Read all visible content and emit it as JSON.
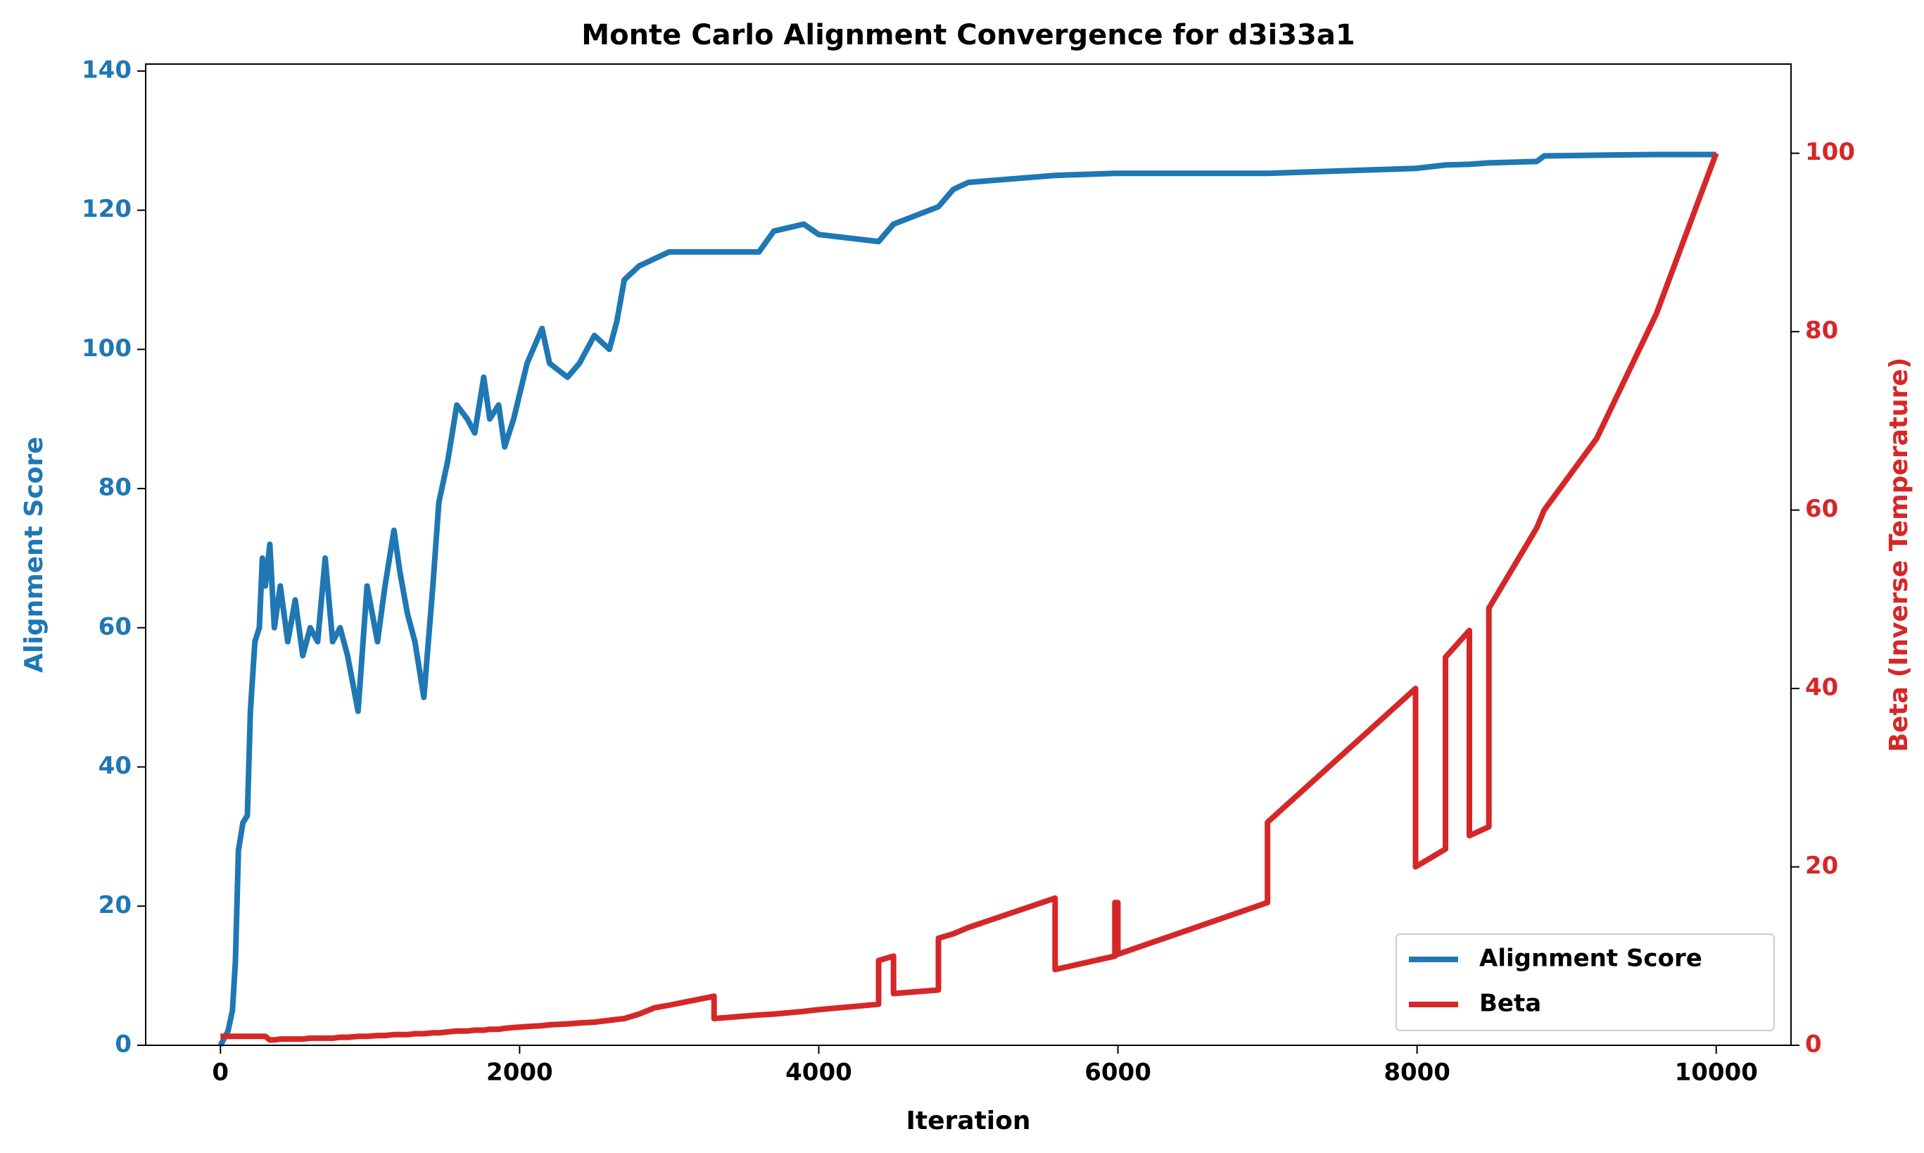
{
  "chart_data": {
    "type": "line",
    "title": "Monte Carlo Alignment Convergence for d3i33a1",
    "x_label": "Iteration",
    "y_label": "Alignment Score",
    "y2_label": "Beta (Inverse Temperature)",
    "xlim": [
      -500,
      10500
    ],
    "xticks": [
      0,
      2000,
      4000,
      6000,
      8000,
      10000
    ],
    "ylim": [
      0,
      141
    ],
    "yticks": [
      0,
      20,
      40,
      60,
      80,
      100,
      120,
      140
    ],
    "y2lim": [
      0,
      110
    ],
    "y2ticks": [
      0,
      20,
      40,
      60,
      80,
      100
    ],
    "legend": "lower right",
    "x": [
      0,
      50,
      80,
      100,
      120,
      150,
      180,
      200,
      230,
      260,
      280,
      300,
      330,
      360,
      400,
      450,
      500,
      550,
      600,
      650,
      700,
      750,
      800,
      850,
      920,
      980,
      1050,
      1100,
      1160,
      1200,
      1250,
      1300,
      1360,
      1420,
      1460,
      1520,
      1580,
      1650,
      1700,
      1760,
      1800,
      1860,
      1900,
      1960,
      2050,
      2150,
      2200,
      2320,
      2400,
      2500,
      2600,
      2650,
      2700,
      2800,
      2900,
      3000,
      3300,
      3300,
      3600,
      3700,
      3700,
      3900,
      4000,
      4400,
      4400,
      4500,
      4500,
      4800,
      4800,
      4900,
      5000,
      5580,
      5580,
      5980,
      5980,
      6000,
      6000,
      7000,
      7000,
      7990,
      7990,
      8190,
      8190,
      8350,
      8350,
      8480,
      8480,
      8800,
      8850,
      9200,
      9600,
      10000
    ],
    "series": [
      {
        "name": "Alignment Score",
        "color": "#1f77b4",
        "axis": "y",
        "values": [
          0,
          2,
          5,
          12,
          28,
          32,
          33,
          48,
          58,
          60,
          70,
          66,
          72,
          60,
          66,
          58,
          64,
          56,
          60,
          58,
          70,
          58,
          60,
          56,
          48,
          66,
          58,
          66,
          74,
          68,
          62,
          58,
          50,
          66,
          78,
          84,
          92,
          90,
          88,
          96,
          90,
          92,
          86,
          90,
          98,
          103,
          98,
          96,
          98,
          102,
          100,
          104,
          110,
          112,
          113,
          114,
          114,
          114,
          114,
          117,
          117,
          118,
          116.5,
          115.5,
          115.5,
          118,
          118,
          120.5,
          120.5,
          123,
          124,
          125,
          125,
          125.3,
          125.3,
          125.3,
          125.3,
          125.3,
          125.3,
          126,
          126,
          126.5,
          126.5,
          126.6,
          126.6,
          126.8,
          126.8,
          127,
          127.8,
          127.9,
          128,
          128
        ]
      },
      {
        "name": "Beta",
        "color": "#d62728",
        "axis": "y2",
        "values": [
          1,
          1,
          1,
          1,
          1,
          1,
          1,
          1,
          1,
          1,
          1,
          1,
          0.6,
          0.6,
          0.7,
          0.7,
          0.7,
          0.7,
          0.8,
          0.8,
          0.8,
          0.8,
          0.9,
          0.9,
          1.0,
          1.0,
          1.1,
          1.1,
          1.2,
          1.2,
          1.2,
          1.3,
          1.3,
          1.4,
          1.4,
          1.5,
          1.6,
          1.6,
          1.7,
          1.7,
          1.8,
          1.8,
          1.9,
          2.0,
          2.1,
          2.2,
          2.3,
          2.4,
          2.5,
          2.6,
          2.8,
          2.9,
          3.0,
          3.5,
          4.2,
          4.5,
          5.5,
          3.0,
          3.4,
          3.5,
          3.5,
          3.8,
          4.0,
          4.6,
          9.5,
          10,
          5.8,
          6.2,
          12,
          12.5,
          13.2,
          16.5,
          8.5,
          10,
          16,
          16,
          10.2,
          16,
          25,
          40,
          20,
          22,
          43.5,
          46.5,
          23.5,
          24.5,
          49,
          58,
          60,
          68,
          82,
          100
        ]
      }
    ]
  }
}
